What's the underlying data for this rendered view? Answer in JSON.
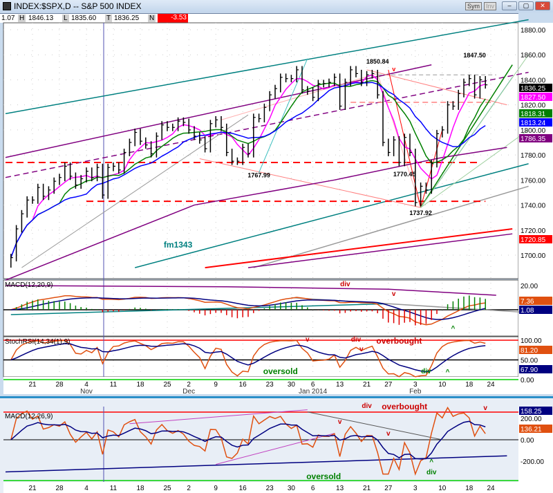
{
  "window": {
    "title": "INDEX:$SPX,D -- S&P 500 INDEX",
    "sym_label": "Sym",
    "inv_label": "Inv",
    "min": "–",
    "max": "▢",
    "close": "✕"
  },
  "info": {
    "vol": "1.07",
    "h_label": "H",
    "high": "1846.13",
    "l_label": "L",
    "low": "1835.60",
    "t_label": "T",
    "last": "1836.25",
    "n_label": "N",
    "change": "-3.53",
    "change_color": "#ff0000"
  },
  "chart_data": {
    "type": "ohlc",
    "dates": [
      "2013-10-15",
      "2013-10-16",
      "2013-10-17",
      "2013-10-18",
      "2013-10-21",
      "2013-10-22",
      "2013-10-23",
      "2013-10-24",
      "2013-10-25",
      "2013-10-28",
      "2013-10-29",
      "2013-10-30",
      "2013-10-31",
      "2013-11-01",
      "2013-11-04",
      "2013-11-05",
      "2013-11-06",
      "2013-11-07",
      "2013-11-08",
      "2013-11-11",
      "2013-11-12",
      "2013-11-13",
      "2013-11-14",
      "2013-11-15",
      "2013-11-18",
      "2013-11-19",
      "2013-11-20",
      "2013-11-21",
      "2013-11-22",
      "2013-11-25",
      "2013-11-26",
      "2013-11-27",
      "2013-11-29",
      "2013-12-02",
      "2013-12-03",
      "2013-12-04",
      "2013-12-05",
      "2013-12-06",
      "2013-12-09",
      "2013-12-10",
      "2013-12-11",
      "2013-12-12",
      "2013-12-13",
      "2013-12-16",
      "2013-12-17",
      "2013-12-18",
      "2013-12-19",
      "2013-12-20",
      "2013-12-23",
      "2013-12-24",
      "2013-12-26",
      "2013-12-27",
      "2013-12-30",
      "2013-12-31",
      "2014-01-02",
      "2014-01-03",
      "2014-01-06",
      "2014-01-07",
      "2014-01-08",
      "2014-01-09",
      "2014-01-10",
      "2014-01-13",
      "2014-01-14",
      "2014-01-15",
      "2014-01-16",
      "2014-01-17",
      "2014-01-21",
      "2014-01-22",
      "2014-01-23",
      "2014-01-24",
      "2014-01-27",
      "2014-01-28",
      "2014-01-29",
      "2014-01-30",
      "2014-01-31",
      "2014-02-03",
      "2014-02-04",
      "2014-02-05",
      "2014-02-06",
      "2014-02-07",
      "2014-02-10",
      "2014-02-11",
      "2014-02-12",
      "2014-02-13",
      "2014-02-14",
      "2014-02-18",
      "2014-02-19",
      "2014-02-20",
      "2014-02-21"
    ],
    "close": [
      1698,
      1721,
      1733,
      1744,
      1744,
      1754,
      1747,
      1752,
      1759,
      1762,
      1771,
      1763,
      1756,
      1761,
      1767,
      1762,
      1770,
      1748,
      1770,
      1771,
      1768,
      1782,
      1790,
      1798,
      1791,
      1788,
      1781,
      1795,
      1804,
      1802,
      1802,
      1807,
      1806,
      1800,
      1795,
      1792,
      1785,
      1805,
      1808,
      1802,
      1782,
      1775,
      1775,
      1786,
      1781,
      1810,
      1809,
      1818,
      1828,
      1833,
      1842,
      1841,
      1841,
      1848,
      1832,
      1831,
      1826,
      1837,
      1837,
      1838,
      1842,
      1819,
      1838,
      1848,
      1845,
      1838,
      1844,
      1845,
      1828,
      1790,
      1782,
      1792,
      1774,
      1794,
      1782,
      1742,
      1755,
      1752,
      1773,
      1797,
      1800,
      1820,
      1819,
      1829,
      1838,
      1841,
      1828,
      1840,
      1836
    ],
    "price_axis": {
      "ylim": [
        1690,
        1890
      ],
      "ticks": [
        "1700.00",
        "1720.00",
        "1740.00",
        "1760.00",
        "1780.00",
        "1800.00",
        "1820.00",
        "1840.00",
        "1860.00",
        "1880.00"
      ],
      "tick_values": [
        1700,
        1720,
        1740,
        1760,
        1780,
        1800,
        1820,
        1840,
        1860,
        1880
      ]
    },
    "x_ticks": [
      {
        "date": "2013-10-21",
        "label": "21"
      },
      {
        "date": "2013-10-28",
        "label": "28"
      },
      {
        "date": "2013-11-04",
        "label": "4",
        "month": "Nov"
      },
      {
        "date": "2013-11-11",
        "label": "11"
      },
      {
        "date": "2013-11-18",
        "label": "18"
      },
      {
        "date": "2013-11-25",
        "label": "25"
      },
      {
        "date": "2013-12-02",
        "label": "2",
        "month": "Dec"
      },
      {
        "date": "2013-12-09",
        "label": "9"
      },
      {
        "date": "2013-12-16",
        "label": "16"
      },
      {
        "date": "2013-12-23",
        "label": "23"
      },
      {
        "date": "2013-12-30",
        "label": "30"
      },
      {
        "date": "2014-01-06",
        "label": "6",
        "month": "Jan 2014"
      },
      {
        "date": "2014-01-13",
        "label": "13"
      },
      {
        "date": "2014-01-21",
        "label": "21"
      },
      {
        "date": "2014-01-27",
        "label": "27"
      },
      {
        "date": "2014-02-03",
        "label": "3",
        "month": "Feb"
      },
      {
        "date": "2014-02-10",
        "label": "10"
      },
      {
        "date": "2014-02-18",
        "label": "18"
      },
      {
        "date": "2014-02-24",
        "label": "24"
      }
    ],
    "value_tags": [
      {
        "value": "1836.25",
        "color": "#000000"
      },
      {
        "value": "1827.50",
        "color": "#ff00ff"
      },
      {
        "value": "1818.31",
        "color": "#008000"
      },
      {
        "value": "1813.24",
        "color": "#0000ff"
      },
      {
        "value": "1786.35",
        "color": "#800080"
      },
      {
        "value": "1720.85",
        "color": "#ff0000"
      }
    ],
    "annotations": [
      {
        "text": "1850.84",
        "i": 68,
        "p": 1853
      },
      {
        "text": "1767.99",
        "i": 46,
        "p": 1762
      },
      {
        "text": "1770.45",
        "i": 73,
        "p": 1763
      },
      {
        "text": "1737.92",
        "i": 76,
        "p": 1732
      },
      {
        "text": "1847.50",
        "i": 86,
        "p": 1858
      },
      {
        "text": "fm1343",
        "i": 31,
        "p": 1706,
        "color": "#008080"
      },
      {
        "text": "v",
        "i": 70,
        "p": 1847,
        "color": "#ff0000"
      }
    ],
    "trendlines": [
      {
        "color": "#008080",
        "pts": [
          [
            -1,
            1813
          ],
          [
            96,
            1888
          ]
        ],
        "w": 1.5
      },
      {
        "color": "#800080",
        "pts": [
          [
            -1,
            1778
          ],
          [
            78,
            1852
          ]
        ],
        "w": 1.5
      },
      {
        "color": "#800080",
        "pts": [
          [
            -1,
            1762
          ],
          [
            96,
            1846
          ]
        ],
        "w": 1.5,
        "dash": "8,5"
      },
      {
        "color": "#008080",
        "pts": [
          [
            23,
            1690
          ],
          [
            96,
            1773
          ]
        ],
        "w": 1.5
      },
      {
        "color": "#999999",
        "pts": [
          [
            45,
            1690
          ],
          [
            96,
            1755
          ]
        ],
        "w": 1.5
      },
      {
        "color": "#999999",
        "pts": [
          [
            2,
            1690
          ],
          [
            44,
            1812
          ]
        ],
        "w": 1
      },
      {
        "color": "#ff0000",
        "pts": [
          [
            -1,
            1774
          ],
          [
            87,
            1774
          ]
        ],
        "w": 2,
        "dash": "10,6"
      },
      {
        "color": "#ff0000",
        "pts": [
          [
            14,
            1743
          ],
          [
            88,
            1743
          ]
        ],
        "w": 2,
        "dash": "10,6"
      },
      {
        "color": "#ff8080",
        "pts": [
          [
            63,
            1822
          ],
          [
            90,
            1822
          ]
        ],
        "w": 1.5,
        "dash": "8,5"
      },
      {
        "color": "#999999",
        "pts": [
          [
            68,
            1844
          ],
          [
            90,
            1844
          ]
        ],
        "w": 1,
        "dash": "6,4"
      },
      {
        "color": "#ff8080",
        "pts": [
          [
            35,
            1777
          ],
          [
            76,
            1738
          ]
        ],
        "w": 1
      },
      {
        "color": "#ff8080",
        "pts": [
          [
            66,
            1848
          ],
          [
            92,
            1820
          ]
        ],
        "w": 1
      },
      {
        "color": "#ffb0b0",
        "pts": [
          [
            68,
            1845
          ],
          [
            76,
            1738
          ]
        ],
        "w": 1
      },
      {
        "color": "#ffb0b0",
        "pts": [
          [
            68,
            1845
          ],
          [
            39,
            1808
          ]
        ],
        "w": 1
      },
      {
        "color": "#ff0000",
        "pts": [
          [
            70,
            1848
          ],
          [
            76,
            1738
          ]
        ],
        "w": 1
      },
      {
        "color": "#ff0000",
        "pts": [
          [
            76,
            1738
          ],
          [
            80,
            1800
          ]
        ],
        "w": 1
      },
      {
        "color": "#008000",
        "pts": [
          [
            76,
            1738
          ],
          [
            93,
            1852
          ]
        ],
        "w": 1.5
      },
      {
        "color": "#20a0a0",
        "pts": [
          [
            76,
            1738
          ],
          [
            93,
            1842
          ]
        ],
        "w": 1
      },
      {
        "color": "#a0d0a0",
        "pts": [
          [
            76,
            1738
          ],
          [
            96,
            1800
          ]
        ],
        "w": 1
      },
      {
        "color": "#a0d0a0",
        "pts": [
          [
            76,
            1738
          ],
          [
            96,
            1860
          ]
        ],
        "w": 1
      },
      {
        "color": "#40c0c0",
        "pts": [
          [
            46,
            1766
          ],
          [
            55,
            1857
          ]
        ],
        "w": 1
      },
      {
        "color": "#ff0000",
        "pts": [
          [
            36,
            1690
          ],
          [
            93,
            1721
          ]
        ],
        "w": 2
      },
      {
        "color": "#800080",
        "pts": [
          [
            -1,
            1680
          ],
          [
            34,
            1740
          ],
          [
            60,
            1760
          ],
          [
            80,
            1778
          ],
          [
            92,
            1786
          ]
        ],
        "w": 1.5
      },
      {
        "color": "#800080",
        "pts": [
          [
            44,
            1690
          ],
          [
            93,
            1717
          ]
        ],
        "w": 1.5
      }
    ],
    "macd1": {
      "label": "MACD(12,20,9)",
      "ticks": [
        "20.00"
      ],
      "tags": [
        {
          "value": "7.36",
          "color": "#e05010"
        },
        {
          "value": "1.08",
          "color": "#000080"
        }
      ],
      "notes": [
        {
          "text": "div",
          "i": 62,
          "color": "#cc0000"
        },
        {
          "text": "v",
          "i": 71,
          "color": "#cc0000"
        },
        {
          "text": "^",
          "i": 82,
          "color": "#008000"
        }
      ]
    },
    "stochrsi": {
      "label": "StochRSI(14,34(1),9)",
      "ticks": [
        "100.00",
        "50.00",
        "0.00"
      ],
      "tags": [
        {
          "value": "81.20",
          "color": "#e05010"
        },
        {
          "value": "67.90",
          "color": "#000080"
        }
      ],
      "notes": [
        {
          "text": "v",
          "i": 55,
          "color": "#cc0000",
          "y": 494
        },
        {
          "text": "div",
          "i": 64,
          "color": "#cc0000",
          "y": 494
        },
        {
          "text": "overbought",
          "i": 72,
          "color": "#cc0000",
          "y": 497
        },
        {
          "text": "v",
          "i": 65,
          "color": "#cc0000",
          "y": 508
        },
        {
          "text": "oversold",
          "i": 30,
          "color": "#008000",
          "y": 554
        },
        {
          "text": "div",
          "i": 78,
          "color": "#008000",
          "y": 551
        },
        {
          "text": "^",
          "i": 80,
          "color": "#008000",
          "y": 549
        }
      ]
    },
    "macd2": {
      "label": "MACD(12,26,9)",
      "ticks": [
        "200.00",
        "0.00",
        "-200.00"
      ],
      "tags": [
        {
          "value": "158.25",
          "color": "#000080"
        },
        {
          "value": "136.21",
          "color": "#e05010"
        }
      ],
      "notes": [
        {
          "text": "div",
          "i": 66,
          "color": "#cc0000",
          "y": 590
        },
        {
          "text": "overbought",
          "i": 73,
          "color": "#cc0000",
          "y": 592
        },
        {
          "text": "v",
          "i": 88,
          "color": "#cc0000",
          "y": 593
        },
        {
          "text": "v",
          "i": 61,
          "color": "#cc0000",
          "y": 613
        },
        {
          "text": "v",
          "i": 70,
          "color": "#cc0000",
          "y": 630
        },
        {
          "text": "^",
          "i": 78,
          "color": "#008000",
          "y": 673
        },
        {
          "text": "div",
          "i": 78,
          "color": "#008000",
          "y": 683
        },
        {
          "text": "oversold",
          "i": 58,
          "color": "#008000",
          "y": 695
        }
      ]
    }
  }
}
